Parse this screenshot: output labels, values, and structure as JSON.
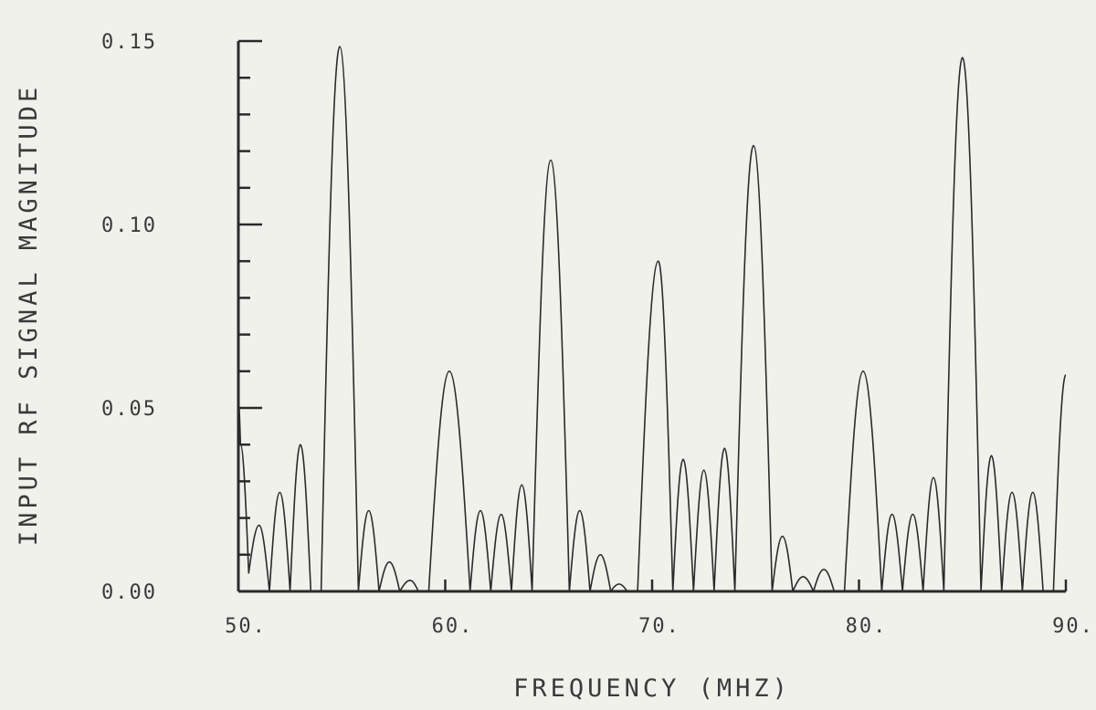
{
  "chart_data": {
    "type": "line",
    "title": "",
    "xlabel": "FREQUENCY  (MHZ)",
    "ylabel": "INPUT RF SIGNAL MAGNITUDE",
    "xlim": [
      50,
      90
    ],
    "ylim": [
      0,
      0.15
    ],
    "x_ticks": [
      50,
      60,
      70,
      80,
      90
    ],
    "x_tick_labels": [
      "50.",
      "60.",
      "70.",
      "80.",
      "90."
    ],
    "y_ticks": [
      0,
      0.05,
      0.1,
      0.15
    ],
    "y_tick_labels": [
      "0.00",
      "0.05",
      "0.10",
      "0.15"
    ],
    "y_minor_step": 0.01,
    "grid": false,
    "legend": "none",
    "line_color": "#2a2a2a",
    "series": [
      {
        "x": [
          50.0,
          50.1,
          50.5,
          51.0,
          51.5,
          52.0,
          52.5,
          53.0,
          53.5,
          54.0,
          54.9,
          55.8,
          56.3,
          56.8,
          57.3,
          57.8,
          58.3,
          58.7,
          59.2,
          60.2,
          61.2,
          61.7,
          62.2,
          62.7,
          63.2,
          63.7,
          64.2,
          65.1,
          66.0,
          66.5,
          67.0,
          67.5,
          68.0,
          68.4,
          68.8,
          69.3,
          70.3,
          71.0,
          71.5,
          72.0,
          72.5,
          73.0,
          73.5,
          74.0,
          74.9,
          75.8,
          76.3,
          76.8,
          77.3,
          77.8,
          78.3,
          78.8,
          79.3,
          80.2,
          81.1,
          81.6,
          82.1,
          82.6,
          83.1,
          83.6,
          84.1,
          85.0,
          85.9,
          86.4,
          86.9,
          87.4,
          87.9,
          88.4,
          88.9,
          89.4,
          90.0
        ],
        "y": [
          0.052,
          0.04,
          0.005,
          0.018,
          0.0,
          0.027,
          0.0,
          0.04,
          0.0,
          0.0,
          0.1485,
          0.0,
          0.022,
          0.0,
          0.008,
          0.0,
          0.003,
          0.0,
          0.0,
          0.06,
          0.0,
          0.022,
          0.0,
          0.021,
          0.0,
          0.029,
          0.0,
          0.1175,
          0.0,
          0.022,
          0.0,
          0.01,
          0.0,
          0.002,
          0.0,
          0.0,
          0.09,
          0.0,
          0.036,
          0.0,
          0.033,
          0.0,
          0.039,
          0.0,
          0.1215,
          0.0,
          0.015,
          0.0,
          0.004,
          0.0,
          0.006,
          0.0,
          0.0,
          0.06,
          0.0,
          0.021,
          0.0,
          0.021,
          0.0,
          0.031,
          0.0,
          0.1455,
          0.0,
          0.037,
          0.0,
          0.027,
          0.0,
          0.027,
          0.0,
          0.0,
          0.059
        ]
      }
    ]
  }
}
